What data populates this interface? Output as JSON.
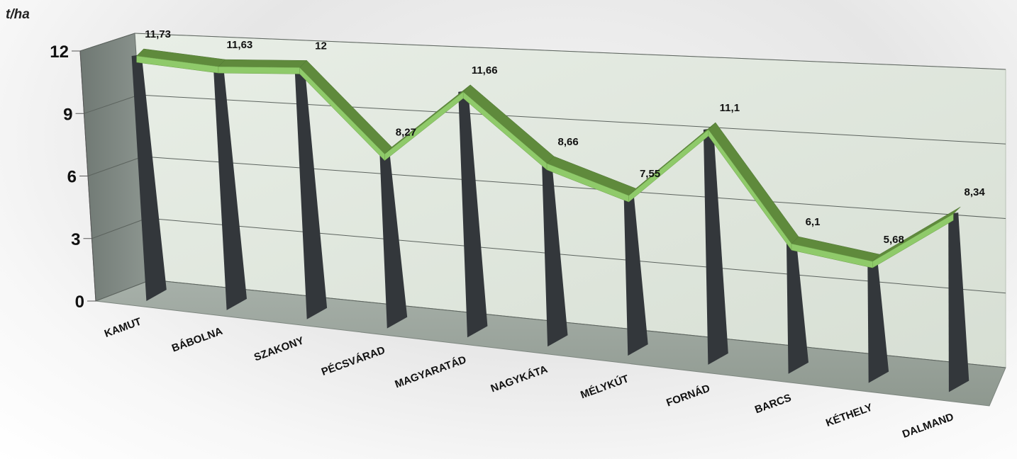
{
  "chart_data": {
    "type": "line",
    "title": "",
    "xlabel": "",
    "ylabel": "t/ha",
    "ylim": [
      0,
      12
    ],
    "yticks": [
      0,
      3,
      6,
      9,
      12
    ],
    "grid": true,
    "categories": [
      "KAMUT",
      "BÁBOLNA",
      "SZAKONY",
      "PÉCSVÁRAD",
      "MAGYARATÁD",
      "NAGYKÁTA",
      "MÉLYKÚT",
      "FORNÁD",
      "BARCS",
      "KÉTHELY",
      "DALMAND"
    ],
    "series": [
      {
        "values": [
          11.73,
          11.63,
          12,
          8.27,
          11.66,
          8.66,
          7.55,
          11.1,
          6.1,
          5.68,
          8.34
        ],
        "labels": [
          "11,73",
          "11,63",
          "12",
          "8,27",
          "11,66",
          "8,66",
          "7,55",
          "11,1",
          "6,1",
          "5,68",
          "8,34"
        ]
      }
    ],
    "colors": {
      "ribbon_top": "#8fca6a",
      "ribbon_side": "#5f8a3c",
      "drop_line": "#33373b",
      "back_wall": "#dfe6dd",
      "side_wall": "#7e8782",
      "floor": "#99a39c"
    }
  }
}
